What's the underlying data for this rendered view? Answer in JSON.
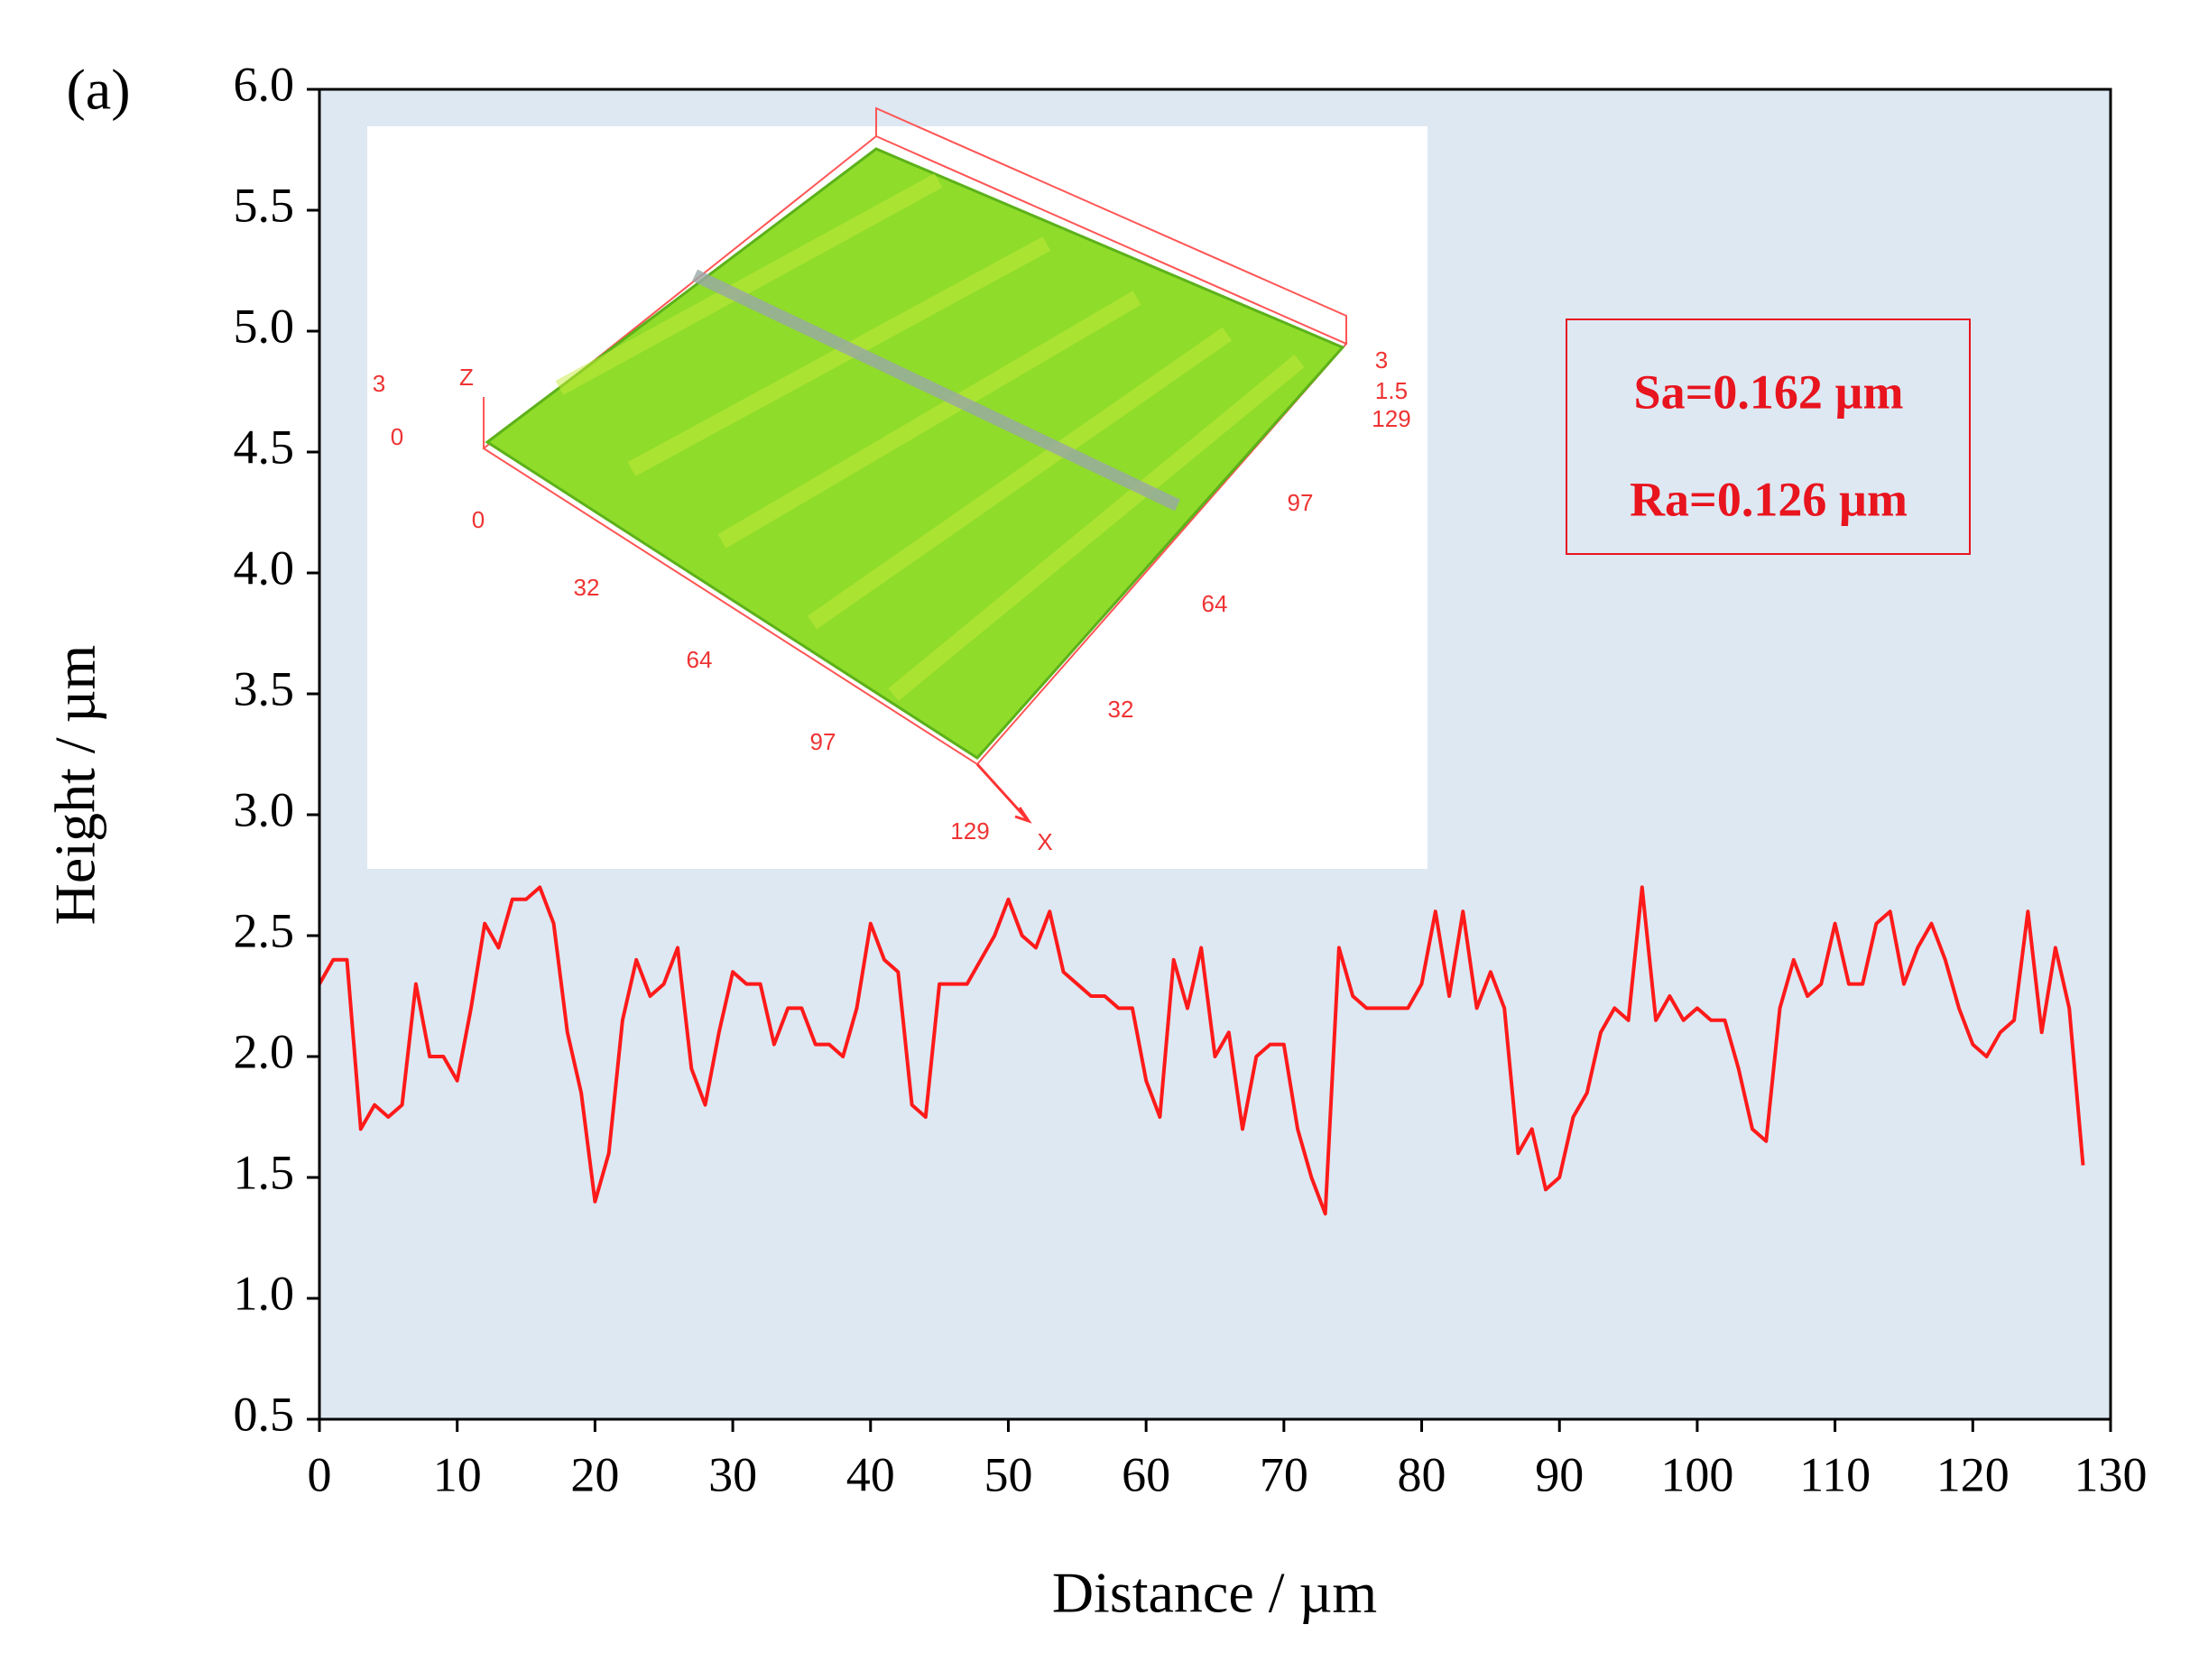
{
  "chart_data": {
    "type": "line",
    "panel_label": "(a)",
    "xlabel": "Distance / µm",
    "ylabel": "Height / µm",
    "xlim": [
      0,
      130
    ],
    "xticks": [
      0,
      10,
      20,
      30,
      40,
      50,
      60,
      70,
      80,
      90,
      100,
      110,
      120,
      130
    ],
    "ylim": [
      0.5,
      6.0
    ],
    "yticks": [
      {
        "value": 0.5,
        "label": "0.5"
      },
      {
        "value": 1.0,
        "label": "1.0"
      },
      {
        "value": 1.5,
        "label": "1.5"
      },
      {
        "value": 2.0,
        "label": "2.0"
      },
      {
        "value": 2.5,
        "label": "2.5"
      },
      {
        "value": 3.0,
        "label": "3.0"
      },
      {
        "value": 3.5,
        "label": "3.5"
      },
      {
        "value": 4.0,
        "label": "4.0"
      },
      {
        "value": 4.5,
        "label": "4.5"
      },
      {
        "value": 5.0,
        "label": "5.0"
      },
      {
        "value": 5.5,
        "label": "5.5"
      },
      {
        "value": 6.0,
        "label": "6.0"
      }
    ],
    "background": "#dde8f3",
    "x": [
      0,
      1,
      2,
      3,
      4,
      5,
      6,
      7,
      8,
      9,
      10,
      11,
      12,
      13,
      14,
      15,
      16,
      17,
      18,
      19,
      20,
      21,
      22,
      23,
      24,
      25,
      26,
      27,
      28,
      29,
      30,
      31,
      32,
      33,
      34,
      35,
      36,
      37,
      38,
      39,
      40,
      41,
      42,
      43,
      44,
      45,
      46,
      47,
      48,
      49,
      50,
      51,
      52,
      53,
      54,
      55,
      56,
      57,
      58,
      59,
      60,
      61,
      62,
      63,
      64,
      65,
      66,
      67,
      68,
      69,
      70,
      71,
      72,
      73,
      74,
      75,
      76,
      77,
      78,
      79,
      80,
      81,
      82,
      83,
      84,
      85,
      86,
      87,
      88,
      89,
      90,
      91,
      92,
      93,
      94,
      95,
      96,
      97,
      98,
      99,
      100,
      101,
      102,
      103,
      104,
      105,
      106,
      107,
      108,
      109,
      110,
      111,
      112,
      113,
      114,
      115,
      116,
      117,
      118,
      119,
      120,
      121,
      122,
      123,
      124,
      125,
      126,
      127,
      128
    ],
    "series": [
      {
        "color": "#ff1a1a",
        "values": [
          2.3,
          2.4,
          2.4,
          1.7,
          1.8,
          1.75,
          1.8,
          2.3,
          2.0,
          2.0,
          1.9,
          2.2,
          2.55,
          2.45,
          2.65,
          2.65,
          2.7,
          2.55,
          2.1,
          1.85,
          1.4,
          1.6,
          2.15,
          2.4,
          2.25,
          2.3,
          2.45,
          1.95,
          1.8,
          2.1,
          2.35,
          2.3,
          2.3,
          2.05,
          2.2,
          2.2,
          2.05,
          2.05,
          2.0,
          2.2,
          2.55,
          2.4,
          2.35,
          1.8,
          1.75,
          2.3,
          2.3,
          2.3,
          2.4,
          2.5,
          2.65,
          2.5,
          2.45,
          2.6,
          2.35,
          2.3,
          2.25,
          2.25,
          2.2,
          2.2,
          1.9,
          1.75,
          2.4,
          2.2,
          2.45,
          2.0,
          2.1,
          1.7,
          2.0,
          2.05,
          2.05,
          1.7,
          1.5,
          1.35,
          2.45,
          2.25,
          2.2,
          2.2,
          2.2,
          2.2,
          2.3,
          2.6,
          2.25,
          2.6,
          2.2,
          2.35,
          2.2,
          1.6,
          1.7,
          1.45,
          1.5,
          1.75,
          1.85,
          2.1,
          2.2,
          2.15,
          2.7,
          2.15,
          2.25,
          2.15,
          2.2,
          2.15,
          2.15,
          1.95,
          1.7,
          1.65,
          2.2,
          2.4,
          2.25,
          2.3,
          2.55,
          2.3,
          2.3,
          2.55,
          2.6,
          2.3,
          2.45,
          2.55,
          2.4,
          2.2,
          2.05,
          2.0,
          2.1,
          2.15,
          2.6,
          2.1,
          2.45,
          2.2,
          1.55
        ]
      }
    ],
    "annotations": [
      "Sa=0.162 µm",
      "Ra=0.126 µm"
    ],
    "inset_labels": [
      "3",
      "0",
      "Z",
      "0",
      "32",
      "64",
      "97",
      "129",
      "X",
      "3",
      "1.5",
      "129",
      "97",
      "64",
      "32"
    ]
  }
}
